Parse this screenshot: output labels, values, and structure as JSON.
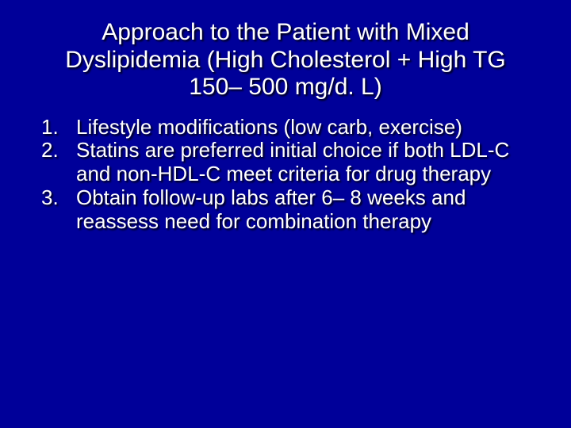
{
  "slide": {
    "background_color": "#000099",
    "text_color": "#ffffff",
    "title_fontsize": 30,
    "body_fontsize": 26,
    "font_family": "Arial",
    "shadow": "2px 2px 2px rgba(0,0,0,0.9)",
    "title": "Approach to the Patient with Mixed Dyslipidemia (High Cholesterol + High TG 150– 500 mg/d. L)",
    "items": [
      {
        "num": "1.",
        "text": "Lifestyle modifications (low carb, exercise)"
      },
      {
        "num": "2.",
        "text": "Statins are preferred initial choice if both LDL-C and non-HDL-C meet criteria for drug therapy"
      },
      {
        "num": "3.",
        "text": "Obtain follow-up labs after 6– 8 weeks and reassess need for combination therapy"
      }
    ]
  }
}
